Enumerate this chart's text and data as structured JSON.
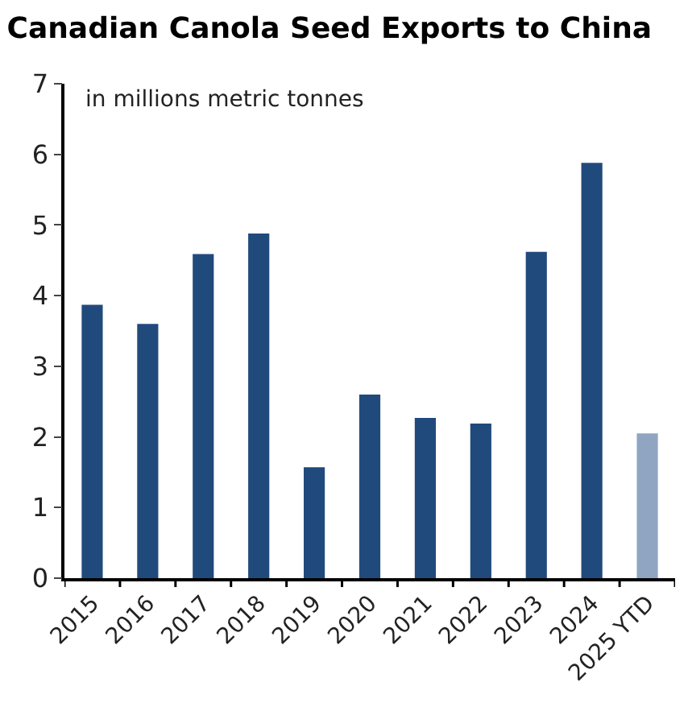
{
  "chart_data": {
    "type": "bar",
    "title": "Canadian Canola Seed Exports to China",
    "annotations": [
      "in millions metric tonnes"
    ],
    "categories": [
      "2015",
      "2016",
      "2017",
      "2018",
      "2019",
      "2020",
      "2021",
      "2022",
      "2023",
      "2024",
      "2025 YTD"
    ],
    "values": [
      3.87,
      3.6,
      4.59,
      4.88,
      1.57,
      2.6,
      2.27,
      2.19,
      4.62,
      5.88,
      2.05
    ],
    "colors": [
      "#214a7c",
      "#214a7c",
      "#214a7c",
      "#214a7c",
      "#214a7c",
      "#214a7c",
      "#214a7c",
      "#214a7c",
      "#214a7c",
      "#214a7c",
      "#8fa5c2"
    ],
    "ylim": [
      0,
      7
    ],
    "yticks": [
      0,
      1,
      2,
      3,
      4,
      5,
      6,
      7
    ]
  }
}
